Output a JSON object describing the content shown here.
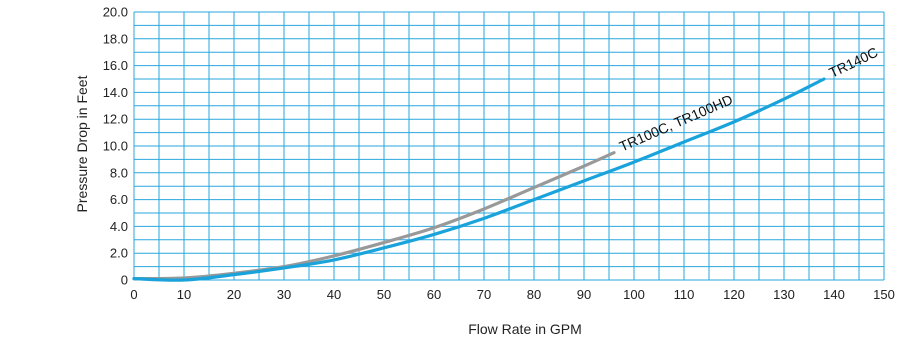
{
  "chart_data": {
    "type": "line",
    "xlabel": "Flow Rate in GPM",
    "ylabel": "Pressure Drop in Feet",
    "xlim": [
      0,
      150
    ],
    "ylim": [
      0,
      20
    ],
    "x_ticks": [
      "0",
      "10",
      "20",
      "30",
      "40",
      "50",
      "60",
      "70",
      "80",
      "90",
      "100",
      "110",
      "120",
      "130",
      "140",
      "150"
    ],
    "y_ticks": [
      "0",
      "2.0",
      "4.0",
      "6.0",
      "8.0",
      "10.0",
      "12.0",
      "14.0",
      "16.0",
      "18.0",
      "20.0"
    ],
    "grid": true,
    "grid_color": "#29a7de",
    "series": [
      {
        "name": "TR100C, TR100HD",
        "color": "#999999",
        "points": [
          [
            0,
            0.1
          ],
          [
            10,
            0.15
          ],
          [
            20,
            0.5
          ],
          [
            30,
            1.0
          ],
          [
            40,
            1.8
          ],
          [
            50,
            2.8
          ],
          [
            60,
            3.9
          ],
          [
            70,
            5.3
          ],
          [
            80,
            6.9
          ],
          [
            90,
            8.5
          ],
          [
            96,
            9.5
          ]
        ]
      },
      {
        "name": "TR140C",
        "color": "#1aa3db",
        "points": [
          [
            0,
            0.1
          ],
          [
            10,
            0.0
          ],
          [
            20,
            0.4
          ],
          [
            30,
            0.9
          ],
          [
            40,
            1.5
          ],
          [
            50,
            2.4
          ],
          [
            60,
            3.4
          ],
          [
            70,
            4.6
          ],
          [
            80,
            6.0
          ],
          [
            90,
            7.4
          ],
          [
            100,
            8.8
          ],
          [
            110,
            10.3
          ],
          [
            120,
            11.8
          ],
          [
            130,
            13.5
          ],
          [
            138,
            15.0
          ]
        ]
      }
    ]
  }
}
